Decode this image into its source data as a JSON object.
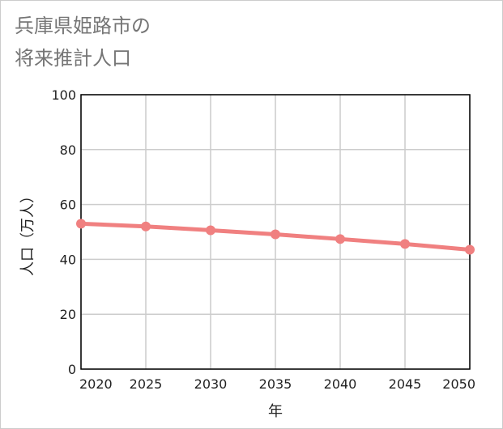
{
  "chart_data": {
    "type": "line",
    "title_lines": [
      "兵庫県姫路市の",
      "将来推計人口"
    ],
    "xlabel": "年",
    "ylabel": "人口（万人）",
    "x": [
      2020,
      2025,
      2030,
      2035,
      2040,
      2045,
      2050
    ],
    "series": [
      {
        "name": "将来推計人口",
        "values": [
          53.0,
          52.0,
          50.6,
          49.1,
          47.4,
          45.6,
          43.5
        ]
      }
    ],
    "x_ticks": [
      "2020",
      "2025",
      "2030",
      "2035",
      "2040",
      "2045",
      "2050"
    ],
    "y_ticks": [
      "0",
      "20",
      "40",
      "60",
      "80",
      "100"
    ],
    "ylim": [
      0,
      100
    ],
    "xlim": [
      2020,
      2050
    ],
    "grid": true,
    "colors": {
      "line": "#f08080",
      "grid": "#cccccc",
      "axis": "#000000",
      "title": "#757575"
    }
  }
}
